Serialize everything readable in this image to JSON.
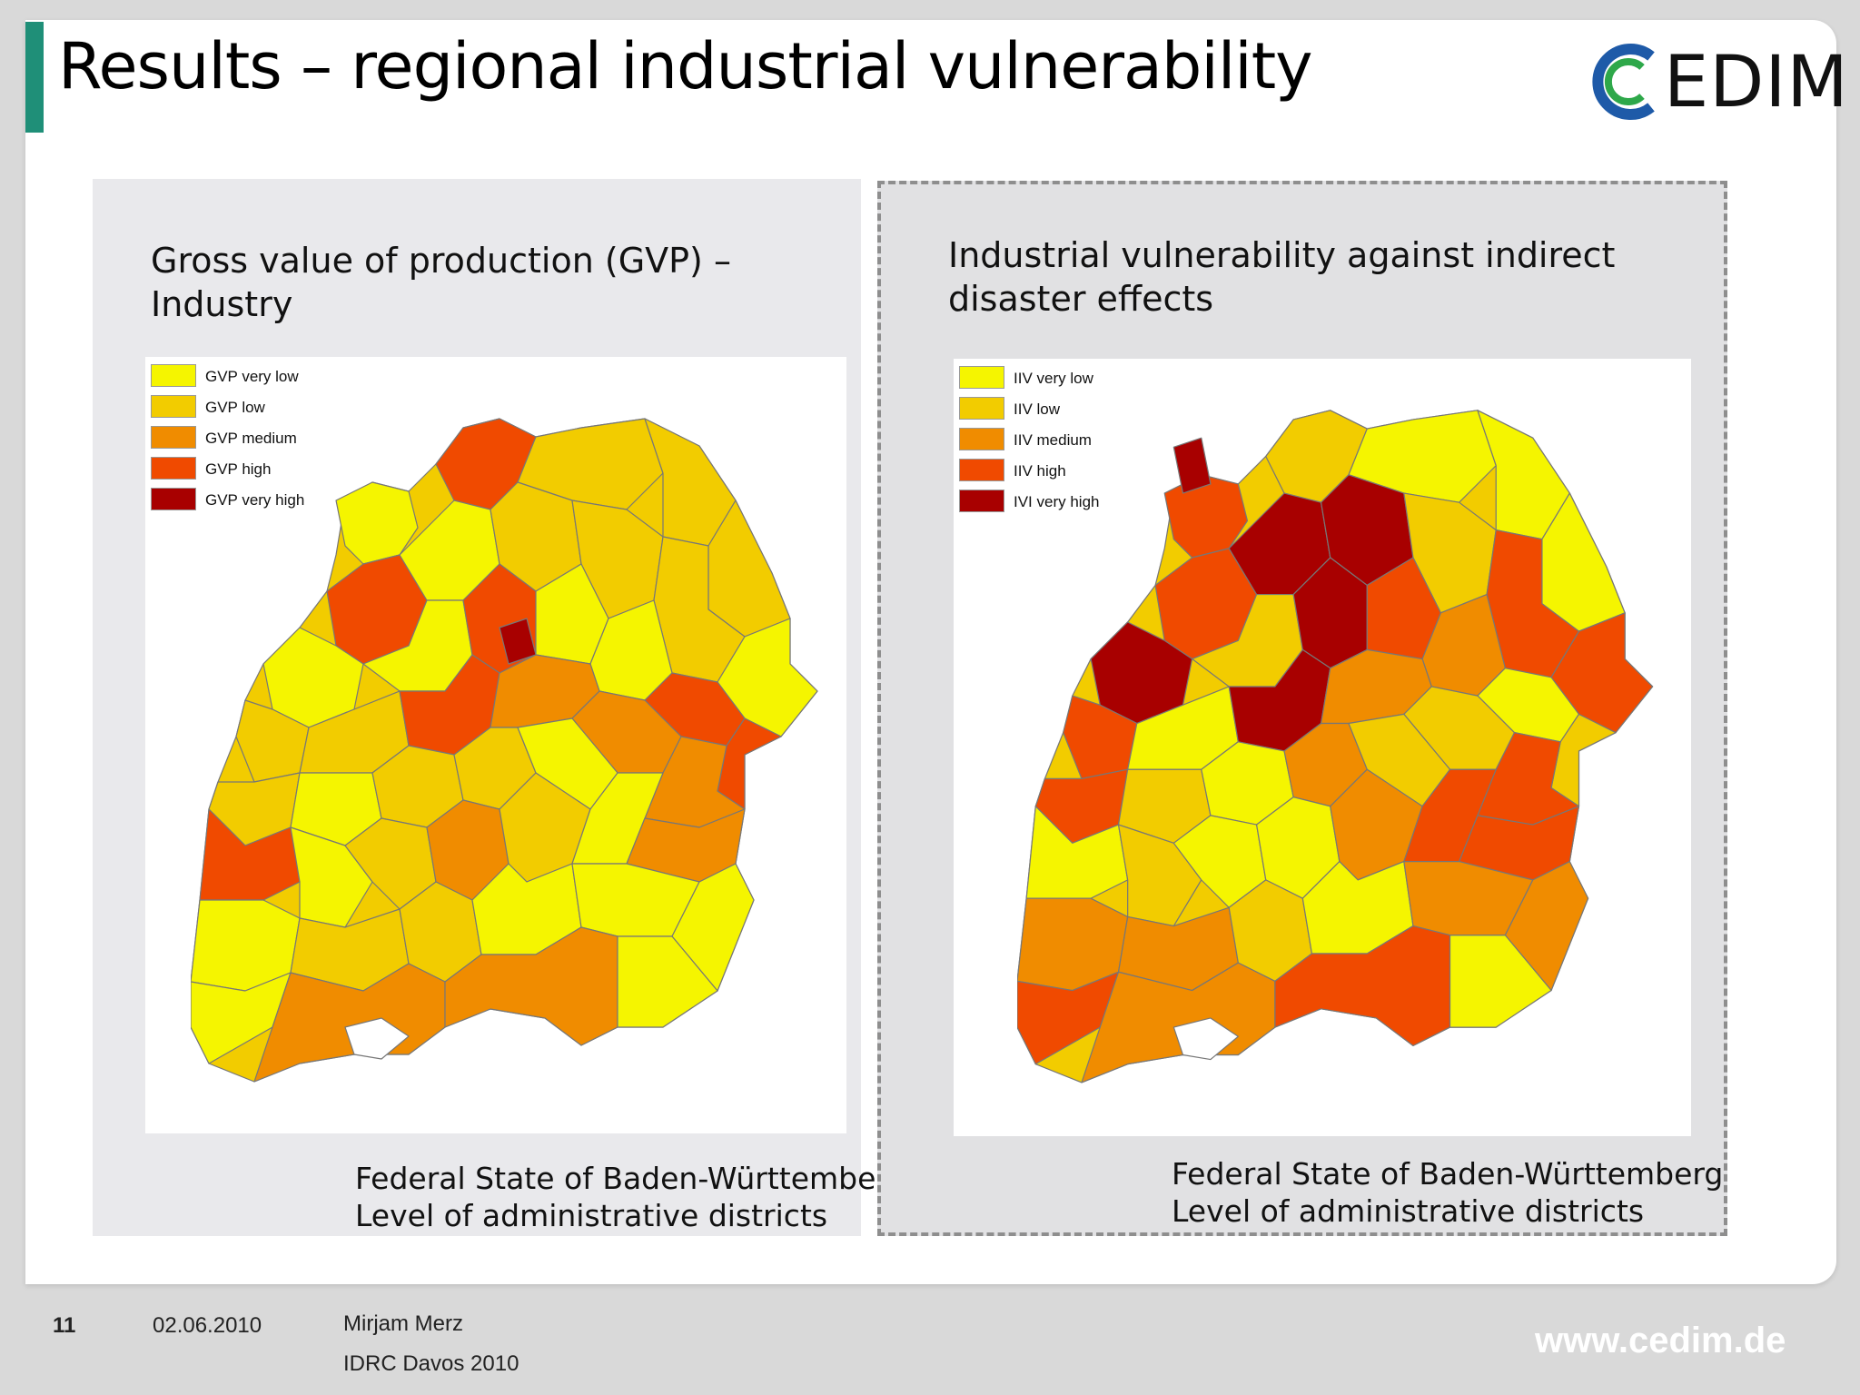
{
  "slide": {
    "title": "Results – regional industrial vulnerability",
    "logo_text": "EDIM"
  },
  "left_panel": {
    "title_line1": "Gross value of production (GVP) –",
    "title_line2": "Industry",
    "legend": [
      {
        "label": "GVP very low",
        "color": "#f5f500"
      },
      {
        "label": "GVP low",
        "color": "#f2cc00"
      },
      {
        "label": "GVP medium",
        "color": "#f08c00"
      },
      {
        "label": "GVP high",
        "color": "#f04a00"
      },
      {
        "label": "GVP very high",
        "color": "#a80000"
      }
    ],
    "caption_line1": "Federal State of Baden-Württemberg",
    "caption_line2": "Level of administrative districts"
  },
  "right_panel": {
    "title_line1": "Industrial vulnerability against indirect",
    "title_line2": "disaster effects",
    "legend": [
      {
        "label": "IIV very low",
        "color": "#f5f500"
      },
      {
        "label": "IIV low",
        "color": "#f2cc00"
      },
      {
        "label": "IIV medium",
        "color": "#f08c00"
      },
      {
        "label": "IIV  high",
        "color": "#f04a00"
      },
      {
        "label": "IVI very high",
        "color": "#a80000"
      }
    ],
    "caption_line1": "Federal State of Baden-Württemberg",
    "caption_line2": "Level of administrative districts"
  },
  "footer": {
    "page_number": "11",
    "date": "02.06.2010",
    "author": "Mirjam Merz",
    "event": "IDRC Davos 2010",
    "website": "www.cedim.de"
  },
  "colors": {
    "accent_bar": "#1f8f78",
    "logo_blue": "#1e5aa8",
    "logo_green": "#2ea84a"
  }
}
